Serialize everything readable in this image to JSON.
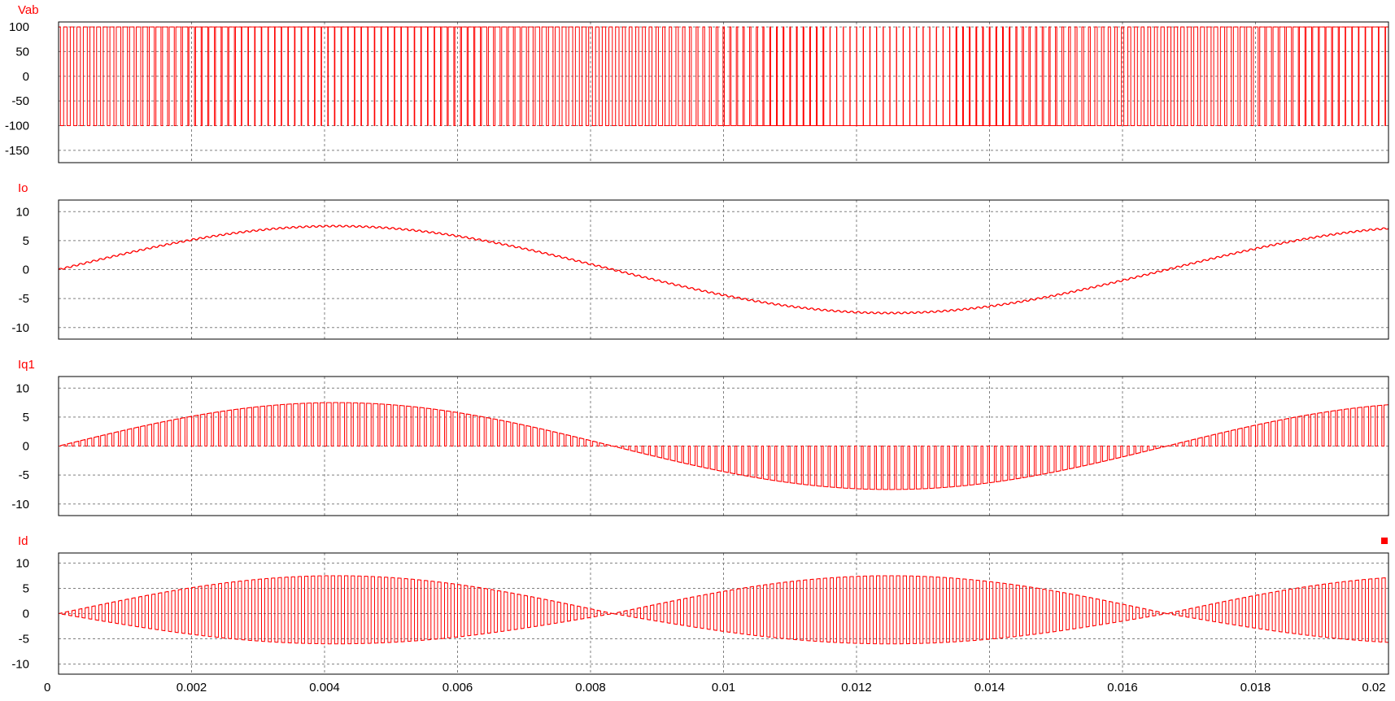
{
  "chart_data": [
    {
      "type": "line",
      "title": "Vab",
      "ylim": [
        -175,
        110
      ],
      "yticks": [
        100,
        50,
        0,
        -50,
        -100,
        -150
      ],
      "xlim": [
        0,
        0.02
      ],
      "grid": true,
      "color": "#ff0000",
      "series": [
        {
          "waveform": "bipolar-pwm",
          "amplitude": 100,
          "switching_frequency_hz": 10000,
          "modulation_frequency_hz": 60
        }
      ]
    },
    {
      "type": "line",
      "title": "Io",
      "ylim": [
        -12,
        12
      ],
      "yticks": [
        10,
        5,
        0,
        -5,
        -10
      ],
      "xlim": [
        0,
        0.02
      ],
      "grid": true,
      "color": "#ff0000",
      "series": [
        {
          "waveform": "sine-with-ripple",
          "amplitude": 7.5,
          "frequency_hz": 60,
          "ripple_amplitude": 0.15,
          "ripple_frequency_hz": 10000
        }
      ]
    },
    {
      "type": "line",
      "title": "Iq1",
      "ylim": [
        -12,
        12
      ],
      "yticks": [
        10,
        5,
        0,
        -5,
        -10
      ],
      "xlim": [
        0,
        0.02
      ],
      "grid": true,
      "color": "#ff0000",
      "series": [
        {
          "waveform": "switch-current",
          "amplitude": 7.5,
          "frequency_hz": 60,
          "switching_frequency_hz": 10000
        }
      ]
    },
    {
      "type": "line",
      "title": "Id",
      "ylim": [
        -12,
        12
      ],
      "yticks": [
        10,
        5,
        0,
        -5,
        -10
      ],
      "xlim": [
        0,
        0.02
      ],
      "grid": true,
      "color": "#ff0000",
      "series": [
        {
          "waveform": "switched-rectified-current",
          "amplitude": 7.5,
          "frequency_hz": 60,
          "switching_frequency_hz": 10000
        }
      ]
    }
  ],
  "x_axis": {
    "tick_labels": [
      "0",
      "0.002",
      "0.004",
      "0.006",
      "0.008",
      "0.01",
      "0.012",
      "0.014",
      "0.016",
      "0.018",
      "0.02"
    ],
    "tick_values": [
      0,
      0.002,
      0.004,
      0.006,
      0.008,
      0.01,
      0.012,
      0.014,
      0.016,
      0.018,
      0.02
    ]
  },
  "theme": {
    "trace_color": "#ff0000",
    "grid_color": "#808080",
    "frame_color": "#000000"
  }
}
